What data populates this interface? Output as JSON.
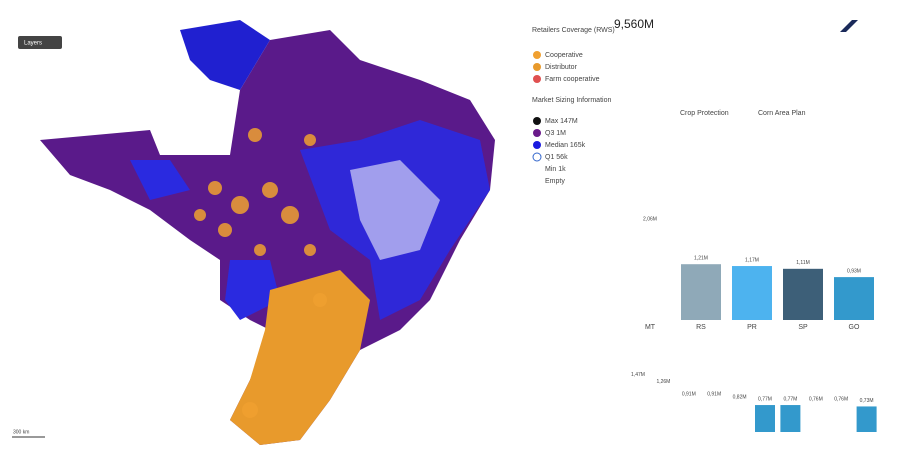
{
  "map": {
    "layers_button": "Layers",
    "coverage": {
      "title": "Retailers Coverage (RWS)",
      "items": [
        {
          "label": "Cooperative",
          "color": "#f0a030"
        },
        {
          "label": "Distributor",
          "color": "#e89a2c"
        },
        {
          "label": "Farm cooperative",
          "color": "#e05050"
        }
      ]
    },
    "sizing": {
      "title": "Market Sizing Information",
      "items": [
        {
          "label": "Max 147M",
          "color": "#111111"
        },
        {
          "label": "Q3 1M",
          "color": "#6a1a8a"
        },
        {
          "label": "Median 165k",
          "color": "#1a1ae0"
        },
        {
          "label": "Q1 56k",
          "color": "#ffffff"
        },
        {
          "label": "Min 1k",
          "color": "none"
        },
        {
          "label": "Empty",
          "color": "none"
        }
      ]
    },
    "scale": "300 km"
  },
  "kpi": {
    "value": "9,560M"
  },
  "filters": [
    "Crop Protection",
    "Corn Area Plan"
  ],
  "chart_data": [
    {
      "type": "bar",
      "categories": [
        "MT",
        "RS",
        "PR",
        "SP",
        "GO"
      ],
      "values": [
        2060000,
        1210000,
        1170000,
        1110000,
        930000
      ],
      "value_labels": [
        "2,06M",
        "1,21M",
        "1,17M",
        "1,11M",
        "0,93M"
      ],
      "colors": [
        "#ffffff",
        "#8fa9b8",
        "#4db3ef",
        "#3d5f78",
        "#3399cc"
      ]
    },
    {
      "type": "bar",
      "categories": [
        null,
        null,
        null,
        null,
        null,
        null,
        null,
        null,
        null,
        null
      ],
      "values": [
        1470000,
        1260000,
        910000,
        910000,
        820000,
        770000,
        770000,
        760000,
        760000,
        730000
      ],
      "value_labels": [
        "1,47M",
        "1,26M",
        "0,91M",
        "0,91M",
        "0,82M",
        "0,77M",
        "0,77M",
        "0,76M",
        "0,76M",
        "0,73M"
      ],
      "colors": [
        "#ffffff",
        "#ffffff",
        "#ffffff",
        "#ffffff",
        "#ffffff",
        "#3399cc",
        "#3399cc",
        "#ffffff",
        "#ffffff",
        "#3399cc"
      ]
    }
  ]
}
